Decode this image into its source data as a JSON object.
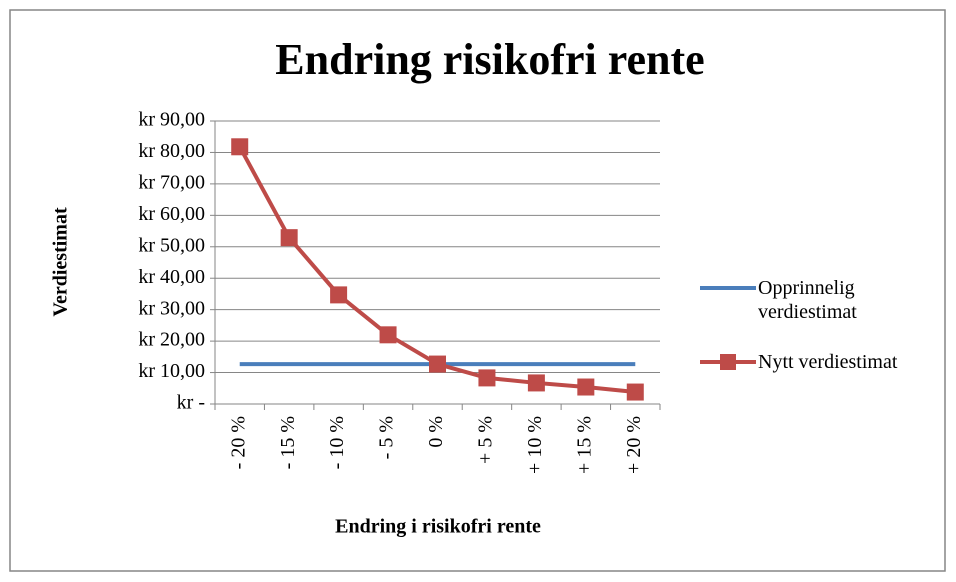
{
  "chart_data": {
    "type": "line",
    "title": "Endring risikofri rente",
    "x_label": "Endring i risikofri rente",
    "y_label": "Verdiestimat",
    "categories": [
      "- 20 %",
      "- 15 %",
      "- 10 %",
      "- 5 %",
      "0 %",
      "+ 5 %",
      "+ 10 %",
      "+ 15 %",
      "+ 20 %"
    ],
    "series": [
      {
        "name": "Opprinnelig verdiestimat",
        "color": "#4a7ebb",
        "values": [
          12.7,
          12.7,
          12.7,
          12.7,
          12.7,
          12.7,
          12.7,
          12.7,
          12.7
        ]
      },
      {
        "name": "Nytt verdiestimat",
        "color": "#be4b48",
        "marker": "square",
        "values": [
          81.8,
          52.9,
          34.7,
          22.0,
          12.7,
          8.3,
          6.7,
          5.4,
          3.8
        ]
      }
    ],
    "ylim": [
      0,
      90
    ],
    "yticks": [
      {
        "value": 0,
        "label": "kr -"
      },
      {
        "value": 10,
        "label": "kr 10,00"
      },
      {
        "value": 20,
        "label": "kr 20,00"
      },
      {
        "value": 30,
        "label": "kr 30,00"
      },
      {
        "value": 40,
        "label": "kr 40,00"
      },
      {
        "value": 50,
        "label": "kr 50,00"
      },
      {
        "value": 60,
        "label": "kr 60,00"
      },
      {
        "value": 70,
        "label": "kr 70,00"
      },
      {
        "value": 80,
        "label": "kr 80,00"
      },
      {
        "value": 90,
        "label": "kr 90,00"
      }
    ],
    "grid": true,
    "legend": "right"
  }
}
